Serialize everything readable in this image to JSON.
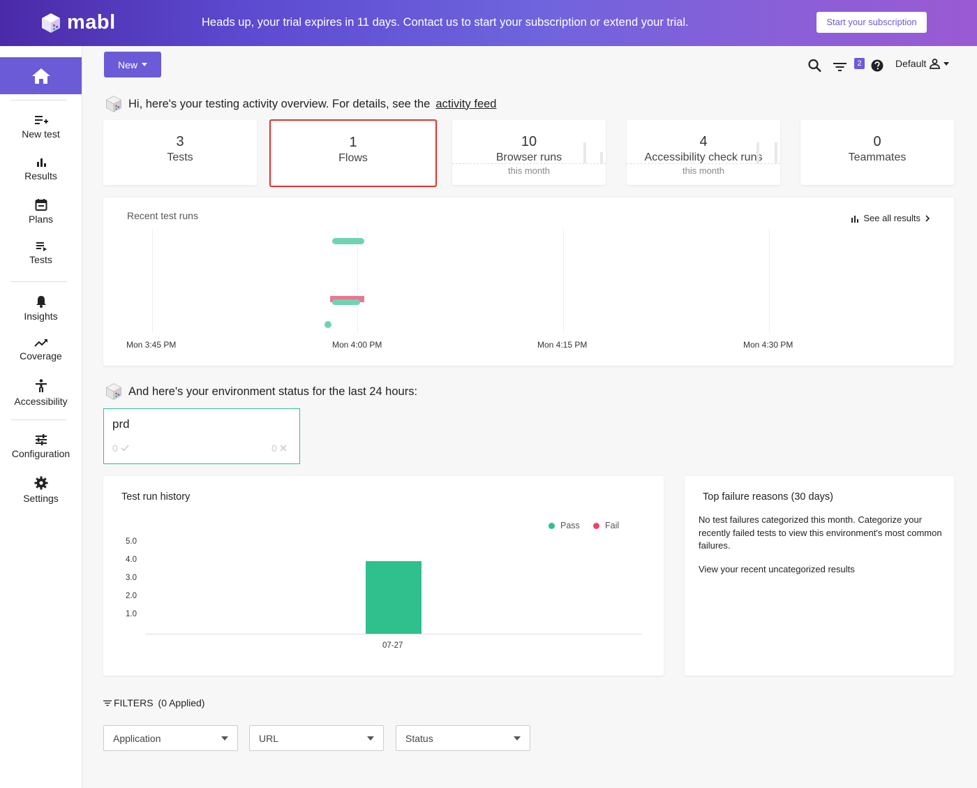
{
  "banner": {
    "logo": "mabl",
    "message": "Heads up, your trial expires in 11 days. Contact us to start your subscription or extend your trial.",
    "cta": "Start your subscription"
  },
  "sidebar": {
    "items": [
      {
        "label": "New test",
        "icon": "new-test-icon"
      },
      {
        "label": "Results",
        "icon": "bar-chart-icon"
      },
      {
        "label": "Plans",
        "icon": "calendar-icon"
      },
      {
        "label": "Tests",
        "icon": "list-icon"
      },
      {
        "label": "Insights",
        "icon": "bell-icon"
      },
      {
        "label": "Coverage",
        "icon": "trend-icon"
      },
      {
        "label": "Accessibility",
        "icon": "accessibility-icon"
      },
      {
        "label": "Configuration",
        "icon": "sliders-icon"
      },
      {
        "label": "Settings",
        "icon": "gear-icon"
      }
    ]
  },
  "toolbar": {
    "new_label": "New",
    "filter_count": "2",
    "workspace": "Default"
  },
  "greeting": {
    "text": "Hi, here's your testing activity overview. For details, see the",
    "link": "activity feed"
  },
  "stats": [
    {
      "num": "3",
      "label": "Tests",
      "sub": ""
    },
    {
      "num": "1",
      "label": "Flows",
      "sub": ""
    },
    {
      "num": "10",
      "label": "Browser runs",
      "sub": "this month"
    },
    {
      "num": "4",
      "label": "Accessibility check runs",
      "sub": "this month"
    },
    {
      "num": "0",
      "label": "Teammates",
      "sub": ""
    }
  ],
  "recent_runs": {
    "title": "Recent test runs",
    "see_all": "See all results",
    "ticks": [
      "Mon 3:45 PM",
      "Mon 4:00 PM",
      "Mon 4:15 PM",
      "Mon 4:30 PM"
    ]
  },
  "environment": {
    "title": "And here's your environment status for the last 24 hours:",
    "name": "prd",
    "pass_count": "0",
    "fail_count": "0"
  },
  "history": {
    "title": "Test run history",
    "legend_pass": "Pass",
    "legend_fail": "Fail",
    "yticks": [
      "5.0",
      "4.0",
      "3.0",
      "2.0",
      "1.0"
    ],
    "colors": {
      "pass": "#2fc08d",
      "fail": "#e8456b"
    }
  },
  "chart_data": {
    "type": "bar",
    "title": "Test run history",
    "categories": [
      "07-27"
    ],
    "series": [
      {
        "name": "Pass",
        "values": [
          4
        ]
      },
      {
        "name": "Fail",
        "values": [
          0
        ]
      }
    ],
    "ylim": [
      0,
      5
    ]
  },
  "failures": {
    "title": "Top failure reasons (30 days)",
    "text": "No test failures categorized this month. Categorize your recently failed tests to view this environment's most common failures.",
    "link": "View your recent uncategorized results"
  },
  "filters": {
    "label": "FILTERS",
    "applied": "(0 Applied)",
    "selects": [
      "Application",
      "URL",
      "Status"
    ]
  }
}
